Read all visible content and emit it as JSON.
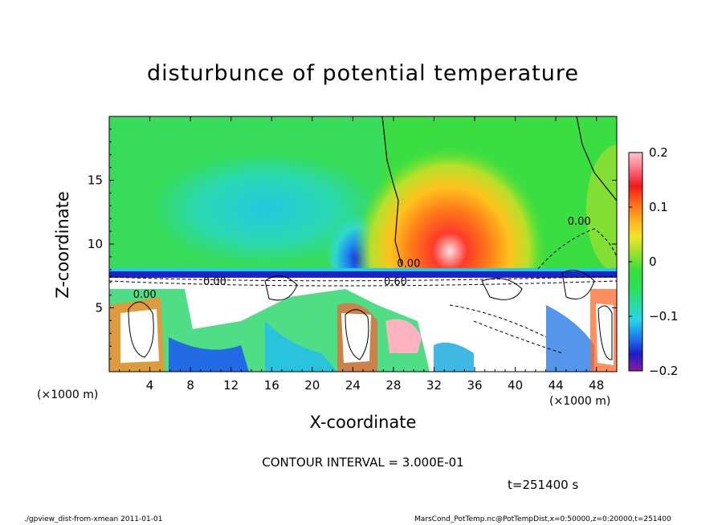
{
  "chart_data": {
    "type": "heatmap",
    "title": "disturbunce of potential temperature",
    "xlabel": "X-coordinate",
    "ylabel": "Z-coordinate",
    "x_unit_label": "(×1000 m)",
    "x_range": [
      0,
      50
    ],
    "y_range": [
      0,
      20
    ],
    "x_ticks": [
      4,
      8,
      12,
      16,
      20,
      24,
      28,
      32,
      36,
      40,
      44,
      48
    ],
    "y_ticks": [
      5,
      10,
      15
    ],
    "colorbar": {
      "range": [
        -0.2,
        0.2
      ],
      "tick_values": [
        0.2,
        0.1,
        0,
        -0.1,
        -0.2
      ],
      "tick_labels": [
        "0.2",
        "0.1",
        "0",
        "−0.1",
        "−0.2"
      ],
      "stops": [
        "#8e1a9c",
        "#1c1cc8",
        "#1e7cf0",
        "#27d4e6",
        "#27dba0",
        "#2ee055",
        "#33e03a",
        "#9be02e",
        "#f0e62a",
        "#ffae1e",
        "#ff6a14",
        "#ee1a1a",
        "#ff6f80",
        "#ffc8cc"
      ]
    },
    "contour_labels": [
      {
        "text": "0.00",
        "x": 29.5,
        "z": 8.2
      },
      {
        "text": "0.60",
        "x": 28.2,
        "z": 6.8
      },
      {
        "text": "0.00",
        "x": 46.3,
        "z": 11.5
      },
      {
        "text": "0.00",
        "x": 10.4,
        "z": 6.8
      },
      {
        "text": "0.00",
        "x": 3.5,
        "z": 5.8
      }
    ],
    "contour_interval_text": "CONTOUR INTERVAL = 3.000E-01",
    "time_text": "t=251400 s",
    "grid": false
  },
  "footer": {
    "left": "./gpview_dist-from-xmean 2011-01-01",
    "right": "MarsCond_PotTemp.nc@PotTempDist,x=0:50000,z=0:20000,t=251400"
  }
}
